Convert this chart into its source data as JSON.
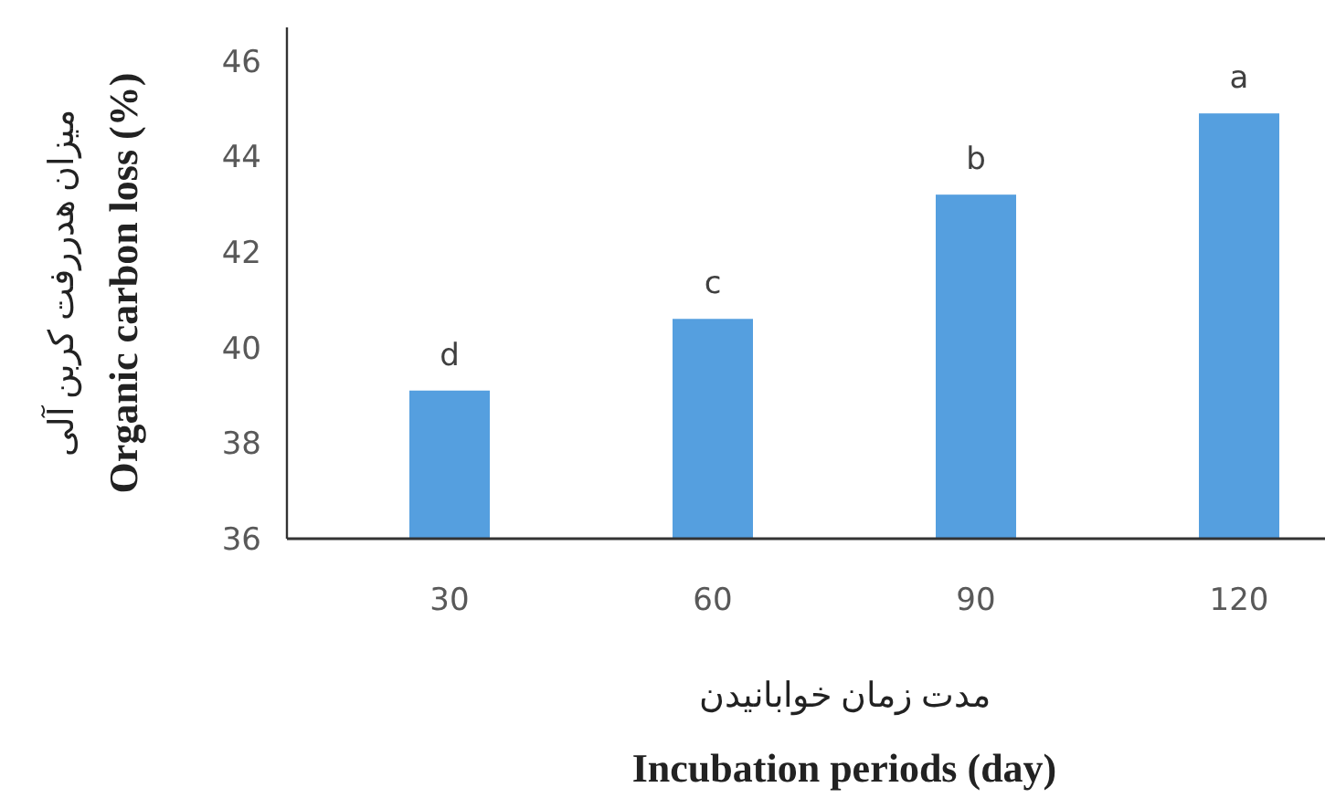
{
  "chart_data": {
    "type": "bar",
    "xlabel": "مدت زمان خوابانیدن\nIncubation periods (day)",
    "ylabel": "میزان هدررفت کربن آلی\nOrganic carbon loss (%)",
    "categories": [
      "30",
      "60",
      "90",
      "120"
    ],
    "values": [
      39.1,
      40.6,
      43.2,
      44.9
    ],
    "color": "#559fdf",
    "ylim": [
      36,
      46.7
    ],
    "yticks": [
      36,
      38,
      40,
      42,
      44,
      46
    ],
    "grid": false,
    "annotations": [
      {
        "text": "d",
        "x": "30",
        "y": 39.1
      },
      {
        "text": "c",
        "x": "60",
        "y": 40.6
      },
      {
        "text": "b",
        "x": "90",
        "y": 43.2
      },
      {
        "text": "a",
        "x": "120",
        "y": 44.9
      }
    ]
  }
}
